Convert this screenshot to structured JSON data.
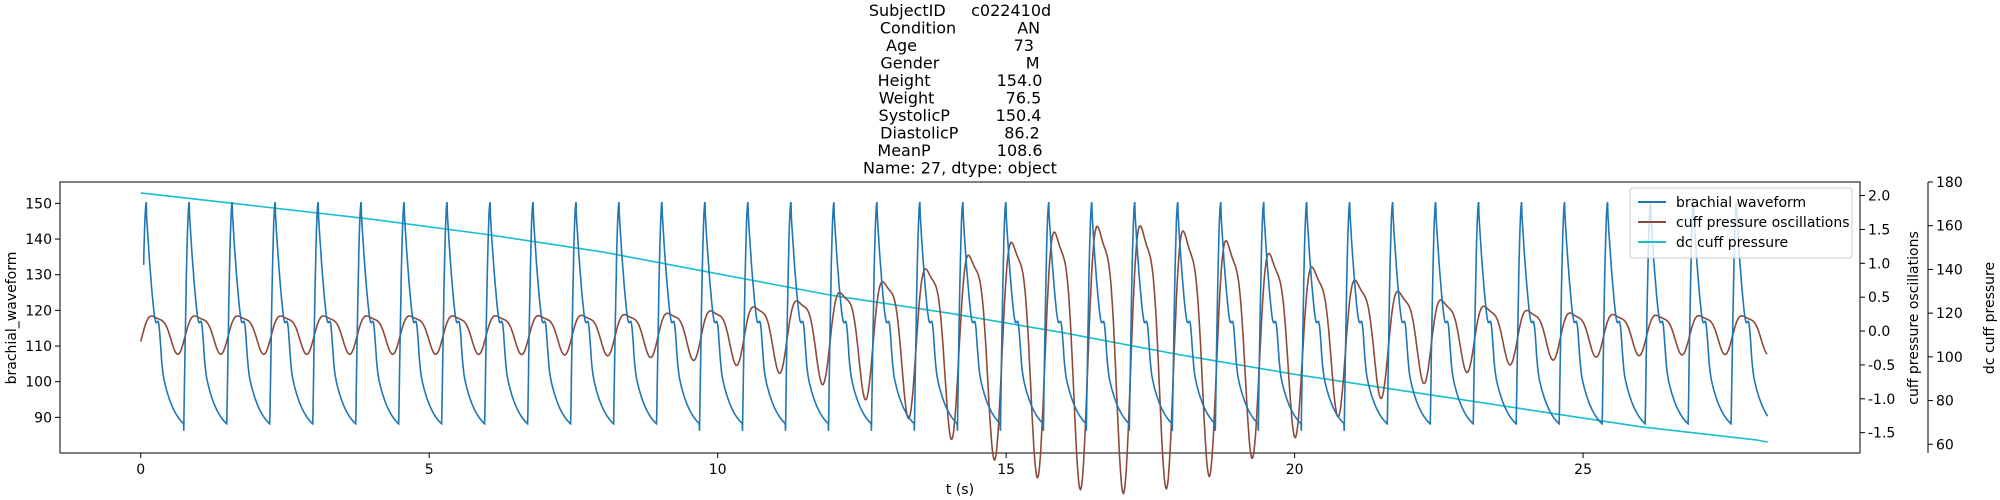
{
  "chart_data": {
    "type": "line",
    "title_lines": [
      "SubjectID     c022410d",
      "Condition            AN",
      "Age                   73",
      "Gender                 M",
      "Height             154.0",
      "Weight              76.5",
      "SystolicP         150.4",
      "DiastolicP         86.2",
      "MeanP             108.6",
      "Name: 27, dtype: object"
    ],
    "xlabel": "t (s)",
    "xlim": [
      -1.4,
      29.8
    ],
    "xticks": [
      0,
      5,
      10,
      15,
      20,
      25
    ],
    "axes": {
      "left": {
        "label": "brachial_waveform",
        "color": "#1f77b4",
        "ylim": [
          80,
          156
        ],
        "ticks": [
          90,
          100,
          110,
          120,
          130,
          140,
          150
        ]
      },
      "right1": {
        "label": "cuff pressure oscillations",
        "color": "#8c4a3c",
        "ylim": [
          -1.8,
          2.2
        ],
        "ticks": [
          -1.5,
          -1.0,
          -0.5,
          0.0,
          0.5,
          1.0,
          1.5,
          2.0
        ],
        "tick_labels": [
          "-1.5",
          "-1.0",
          "-0.5",
          "0.0",
          "0.5",
          "1.0",
          "1.5",
          "2.0"
        ]
      },
      "right2": {
        "label": "dc cuff pressure",
        "color": "#17becf",
        "ylim": [
          56,
          180
        ],
        "ticks": [
          60,
          80,
          100,
          120,
          140,
          160,
          180
        ]
      }
    },
    "series": [
      {
        "name": "brachial waveform",
        "axis": "left",
        "color": "#1f77b4",
        "beat_period": 0.745,
        "beat_count": 38,
        "systolic": 150.4,
        "diastolic": 86.2,
        "mean": 108.6,
        "duration": 28.2
      },
      {
        "name": "cuff pressure oscillations",
        "axis": "right1",
        "color": "#8c4a3c",
        "beat_period": 0.745,
        "envelope_peak_time": 17.0,
        "envelope_peak": 2.1,
        "envelope_min": 0.3,
        "duration": 28.2
      },
      {
        "name": "dc cuff pressure",
        "axis": "right2",
        "color": "#17becf",
        "x": [
          0,
          2,
          4,
          6,
          8,
          10,
          12,
          14,
          16,
          18,
          20,
          22,
          24,
          26,
          28,
          28.2
        ],
        "y": [
          175,
          169,
          163,
          156,
          148,
          138,
          128,
          120,
          111,
          101,
          92,
          84,
          76,
          68,
          62,
          61
        ]
      }
    ],
    "legend": {
      "position": "top-right",
      "entries": [
        "brachial waveform",
        "cuff pressure oscillations",
        "dc cuff pressure"
      ]
    },
    "grid": false
  }
}
